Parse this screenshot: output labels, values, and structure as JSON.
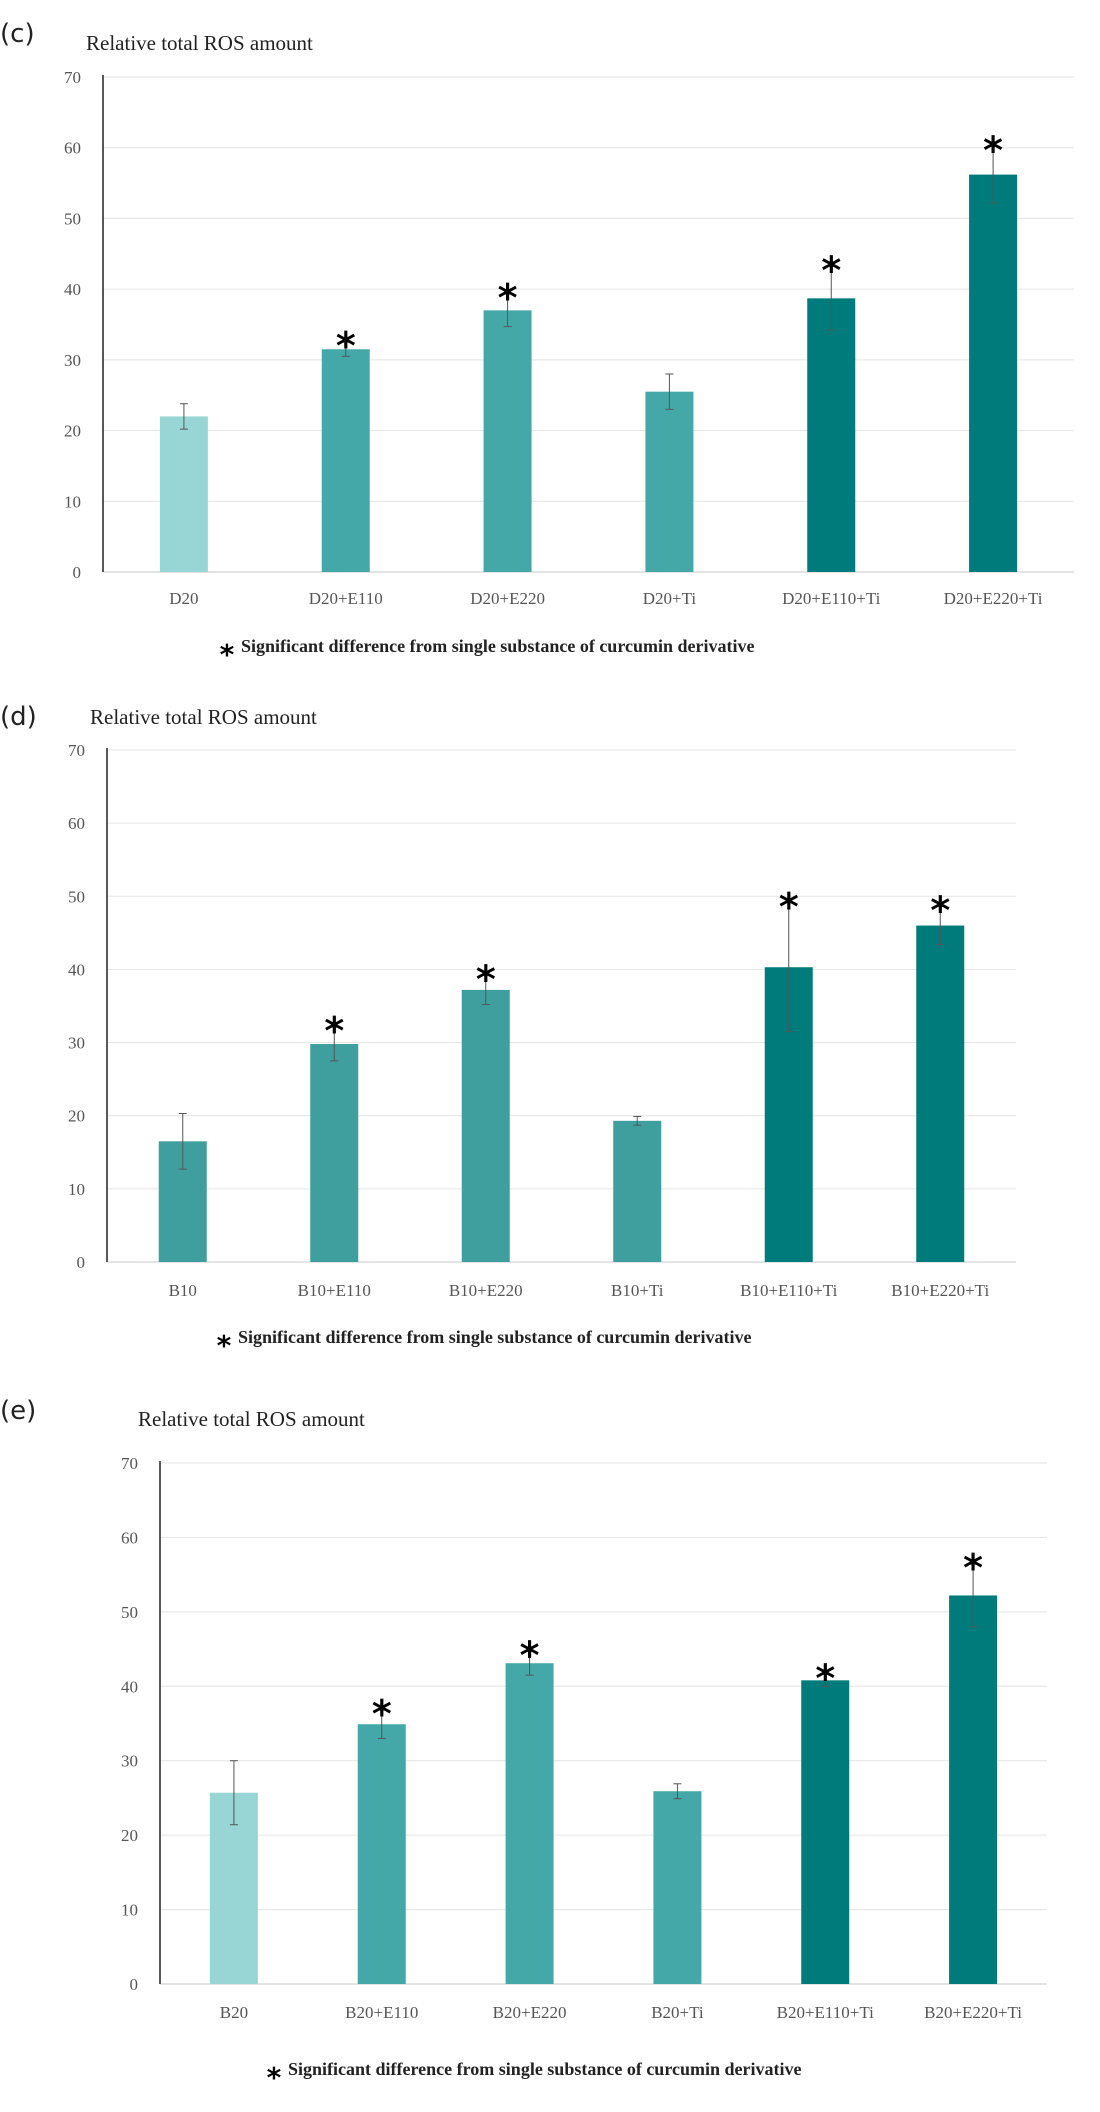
{
  "chart_data": [
    {
      "panel": "(c)",
      "type": "bar",
      "title": "Relative total ROS amount",
      "categories": [
        "D20",
        "D20+E110",
        "D20+E220",
        "D20+Ti",
        "D20+E110+Ti",
        "D20+E220+Ti"
      ],
      "values": [
        22,
        31.5,
        37,
        25.5,
        38.7,
        56.2
      ],
      "errors": [
        1.8,
        1.0,
        2.3,
        2.5,
        4.5,
        4.0
      ],
      "significant": [
        false,
        true,
        true,
        false,
        true,
        true
      ],
      "significance_marker": "*",
      "colors": [
        "#98d6d6",
        "#45a8a8",
        "#45a8a8",
        "#45a8a8",
        "#007b7b",
        "#007b7b"
      ],
      "ylim": [
        0,
        70
      ],
      "yticks": [
        0,
        10,
        20,
        30,
        40,
        50,
        60,
        70
      ],
      "footnote": "Significant difference from single substance of curcumin derivative"
    },
    {
      "panel": "(d)",
      "type": "bar",
      "title": "Relative total ROS amount",
      "categories": [
        "B10",
        "B10+E110",
        "B10+E220",
        "B10+Ti",
        "B10+E110+Ti",
        "B10+E220+Ti"
      ],
      "values": [
        16.5,
        29.8,
        37.2,
        19.3,
        40.3,
        46
      ],
      "errors": [
        3.8,
        2.3,
        2.0,
        0.6,
        8.8,
        2.6
      ],
      "significant": [
        false,
        true,
        true,
        false,
        true,
        true
      ],
      "significance_marker": "*",
      "colors": [
        "#3f9e9e",
        "#3f9e9e",
        "#3f9e9e",
        "#3f9e9e",
        "#007b7b",
        "#007b7b"
      ],
      "ylim": [
        0,
        70
      ],
      "yticks": [
        0,
        10,
        20,
        30,
        40,
        50,
        60,
        70
      ],
      "footnote": "Significant difference from single substance of curcumin derivative"
    },
    {
      "panel": "(e)",
      "type": "bar",
      "title": "Relative total ROS amount",
      "categories": [
        "B20",
        "B20+E110",
        "B20+E220",
        "B20+Ti",
        "B20+E110+Ti",
        "B20+E220+Ti"
      ],
      "values": [
        25.7,
        34.9,
        43.1,
        25.9,
        40.8,
        52.2
      ],
      "errors": [
        4.3,
        1.9,
        1.6,
        1.0,
        0.8,
        4.2
      ],
      "significant": [
        false,
        true,
        true,
        false,
        true,
        true
      ],
      "significance_marker": "*",
      "colors": [
        "#98d6d6",
        "#45a8a8",
        "#45a8a8",
        "#45a8a8",
        "#007b7b",
        "#007b7b"
      ],
      "ylim": [
        0,
        70
      ],
      "yticks": [
        0,
        10,
        20,
        30,
        40,
        50,
        60,
        70
      ],
      "footnote": "Significant difference from single substance of curcumin derivative"
    }
  ]
}
